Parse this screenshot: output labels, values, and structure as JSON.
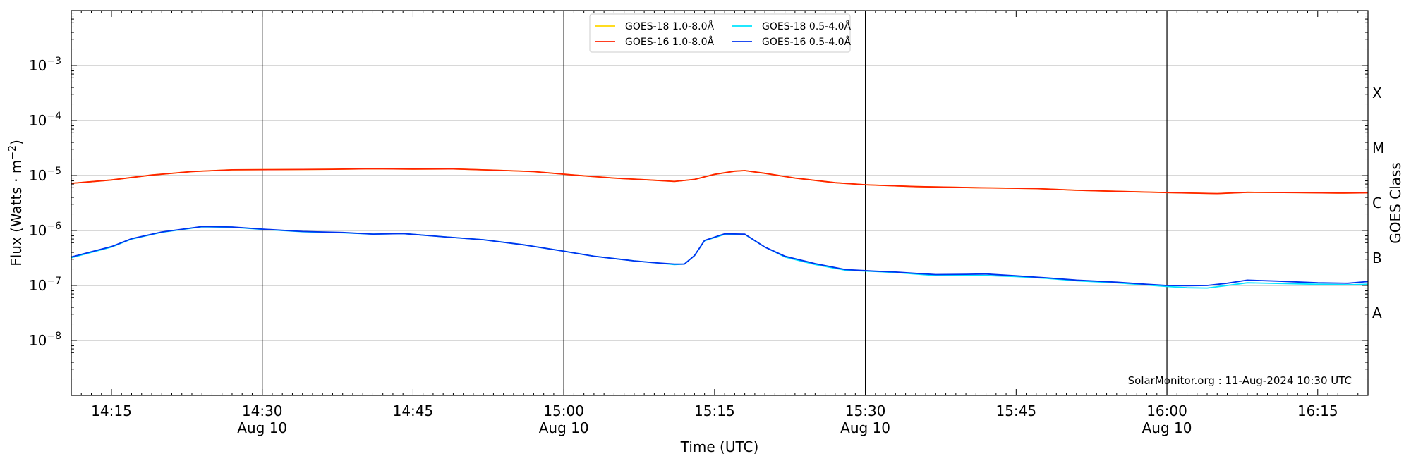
{
  "chart_data": {
    "type": "line",
    "xlabel": "Time (UTC)",
    "ylabel": "Flux (Watts · m",
    "ylabel_exp": "−2",
    "ylabel_close": ")",
    "y2label": "GOES Class",
    "yscale": "log",
    "ylim": [
      1e-09,
      0.01
    ],
    "xlim_minutes": [
      0,
      129
    ],
    "x_tick_minutes": [
      4,
      19,
      34,
      49,
      64,
      79,
      94,
      109,
      124
    ],
    "x_ticks": [
      "14:15",
      "14:30",
      "14:45",
      "15:00",
      "15:15",
      "15:30",
      "15:45",
      "16:00",
      "16:15"
    ],
    "x_tick_sublabels": [
      "",
      "Aug 10",
      "",
      "Aug 10",
      "",
      "Aug 10",
      "",
      "Aug 10",
      ""
    ],
    "y_tick_exponents": [
      -8,
      -7,
      -6,
      -5,
      -4,
      -3
    ],
    "y_ticks": [
      "10",
      "10",
      "10",
      "10",
      "10",
      "10"
    ],
    "y_tick_sup": [
      "−8",
      "−7",
      "−6",
      "−5",
      "−4",
      "−3"
    ],
    "goes_classes": [
      {
        "label": "A",
        "lower": 1e-08
      },
      {
        "label": "B",
        "lower": 1e-07
      },
      {
        "label": "C",
        "lower": 1e-06
      },
      {
        "label": "M",
        "lower": 1e-05
      },
      {
        "label": "X",
        "lower": 0.0001
      }
    ],
    "vertical_lines_minutes": [
      19,
      49,
      79,
      109
    ],
    "horizontal_grid_exponents": [
      -8,
      -7,
      -6,
      -5,
      -4,
      -3
    ],
    "grid": true,
    "legend_position": "top-center",
    "annotation": "SolarMonitor.org : 11-Aug-2024 10:30 UTC",
    "series": [
      {
        "name": "GOES-18 1.0-8.0Å",
        "color": "#ffd700",
        "points": [
          [
            0,
            7.2e-06
          ],
          [
            4,
            8.3e-06
          ],
          [
            8,
            1.02e-05
          ],
          [
            12,
            1.18e-05
          ],
          [
            16,
            1.27e-05
          ],
          [
            20,
            1.28e-05
          ],
          [
            26,
            1.3e-05
          ],
          [
            30,
            1.33e-05
          ],
          [
            34,
            1.31e-05
          ],
          [
            38,
            1.32e-05
          ],
          [
            42,
            1.25e-05
          ],
          [
            46,
            1.18e-05
          ],
          [
            50,
            1.02e-05
          ],
          [
            54,
            9e-06
          ],
          [
            58,
            8.2e-06
          ],
          [
            60,
            7.8e-06
          ],
          [
            62,
            8.5e-06
          ],
          [
            64,
            1.05e-05
          ],
          [
            66,
            1.2e-05
          ],
          [
            67,
            1.23e-05
          ],
          [
            69,
            1.1e-05
          ],
          [
            72,
            9e-06
          ],
          [
            76,
            7.4e-06
          ],
          [
            79,
            6.8e-06
          ],
          [
            84,
            6.3e-06
          ],
          [
            90,
            6e-06
          ],
          [
            93,
            5.9e-06
          ],
          [
            96,
            5.8e-06
          ],
          [
            100,
            5.4e-06
          ],
          [
            105,
            5.1e-06
          ],
          [
            110,
            4.85e-06
          ],
          [
            114,
            4.7e-06
          ],
          [
            117,
            4.95e-06
          ],
          [
            122,
            4.9e-06
          ],
          [
            126,
            4.8e-06
          ],
          [
            129,
            4.85e-06
          ]
        ]
      },
      {
        "name": "GOES-16 1.0-8.0Å",
        "color": "#ff2200",
        "points": [
          [
            0,
            7.2e-06
          ],
          [
            4,
            8.3e-06
          ],
          [
            8,
            1.02e-05
          ],
          [
            12,
            1.18e-05
          ],
          [
            16,
            1.27e-05
          ],
          [
            20,
            1.28e-05
          ],
          [
            26,
            1.3e-05
          ],
          [
            30,
            1.33e-05
          ],
          [
            34,
            1.31e-05
          ],
          [
            38,
            1.32e-05
          ],
          [
            42,
            1.25e-05
          ],
          [
            46,
            1.18e-05
          ],
          [
            50,
            1.02e-05
          ],
          [
            54,
            9e-06
          ],
          [
            58,
            8.2e-06
          ],
          [
            60,
            7.8e-06
          ],
          [
            62,
            8.5e-06
          ],
          [
            64,
            1.05e-05
          ],
          [
            66,
            1.2e-05
          ],
          [
            67,
            1.23e-05
          ],
          [
            69,
            1.1e-05
          ],
          [
            72,
            9e-06
          ],
          [
            76,
            7.4e-06
          ],
          [
            79,
            6.8e-06
          ],
          [
            84,
            6.3e-06
          ],
          [
            90,
            6e-06
          ],
          [
            93,
            5.9e-06
          ],
          [
            96,
            5.8e-06
          ],
          [
            100,
            5.4e-06
          ],
          [
            105,
            5.1e-06
          ],
          [
            110,
            4.85e-06
          ],
          [
            114,
            4.7e-06
          ],
          [
            117,
            4.95e-06
          ],
          [
            122,
            4.9e-06
          ],
          [
            126,
            4.8e-06
          ],
          [
            129,
            4.85e-06
          ]
        ]
      },
      {
        "name": "GOES-18 0.5-4.0Å",
        "color": "#00e5ff",
        "points": [
          [
            0,
            3.2e-07
          ],
          [
            4,
            5e-07
          ],
          [
            6,
            7e-07
          ],
          [
            9,
            9.3e-07
          ],
          [
            13,
            1.17e-06
          ],
          [
            16,
            1.15e-06
          ],
          [
            19,
            1.05e-06
          ],
          [
            23,
            9.5e-07
          ],
          [
            27,
            9.1e-07
          ],
          [
            30,
            8.6e-07
          ],
          [
            33,
            8.8e-07
          ],
          [
            37,
            7.7e-07
          ],
          [
            41,
            6.8e-07
          ],
          [
            45,
            5.5e-07
          ],
          [
            49,
            4.2e-07
          ],
          [
            52,
            3.4e-07
          ],
          [
            56,
            2.8e-07
          ],
          [
            58,
            2.6e-07
          ],
          [
            60,
            2.4e-07
          ],
          [
            61,
            2.45e-07
          ],
          [
            62,
            3.5e-07
          ],
          [
            63,
            6.5e-07
          ],
          [
            65,
            8.5e-07
          ],
          [
            67,
            8.5e-07
          ],
          [
            69,
            5e-07
          ],
          [
            71,
            3.3e-07
          ],
          [
            74,
            2.4e-07
          ],
          [
            77,
            1.9e-07
          ],
          [
            80,
            1.8e-07
          ],
          [
            82,
            1.72e-07
          ],
          [
            84,
            1.62e-07
          ],
          [
            86,
            1.52e-07
          ],
          [
            89,
            1.52e-07
          ],
          [
            91,
            1.52e-07
          ],
          [
            94,
            1.45e-07
          ],
          [
            97,
            1.35e-07
          ],
          [
            100,
            1.22e-07
          ],
          [
            104,
            1.12e-07
          ],
          [
            107,
            1.02e-07
          ],
          [
            109,
            9.6e-08
          ],
          [
            111,
            9.1e-08
          ],
          [
            113,
            9e-08
          ],
          [
            115,
            1e-07
          ],
          [
            117,
            1.12e-07
          ],
          [
            120,
            1.09e-07
          ],
          [
            124,
            1.05e-07
          ],
          [
            127,
            1.03e-07
          ],
          [
            129,
            1.05e-07
          ]
        ]
      },
      {
        "name": "GOES-16 0.5-4.0Å",
        "color": "#0033ee",
        "points": [
          [
            0,
            3.3e-07
          ],
          [
            4,
            5.1e-07
          ],
          [
            6,
            7.1e-07
          ],
          [
            9,
            9.4e-07
          ],
          [
            13,
            1.18e-06
          ],
          [
            16,
            1.16e-06
          ],
          [
            19,
            1.06e-06
          ],
          [
            23,
            9.6e-07
          ],
          [
            27,
            9.2e-07
          ],
          [
            30,
            8.6e-07
          ],
          [
            33,
            8.8e-07
          ],
          [
            37,
            7.7e-07
          ],
          [
            41,
            6.8e-07
          ],
          [
            45,
            5.5e-07
          ],
          [
            49,
            4.2e-07
          ],
          [
            52,
            3.4e-07
          ],
          [
            56,
            2.8e-07
          ],
          [
            58,
            2.6e-07
          ],
          [
            60,
            2.45e-07
          ],
          [
            61,
            2.45e-07
          ],
          [
            62,
            3.5e-07
          ],
          [
            63,
            6.6e-07
          ],
          [
            65,
            8.7e-07
          ],
          [
            67,
            8.6e-07
          ],
          [
            69,
            5e-07
          ],
          [
            71,
            3.4e-07
          ],
          [
            74,
            2.5e-07
          ],
          [
            77,
            1.95e-07
          ],
          [
            80,
            1.82e-07
          ],
          [
            82,
            1.76e-07
          ],
          [
            84,
            1.66e-07
          ],
          [
            86,
            1.58e-07
          ],
          [
            89,
            1.6e-07
          ],
          [
            91,
            1.62e-07
          ],
          [
            94,
            1.5e-07
          ],
          [
            97,
            1.38e-07
          ],
          [
            100,
            1.25e-07
          ],
          [
            104,
            1.15e-07
          ],
          [
            107,
            1.05e-07
          ],
          [
            109,
            1e-07
          ],
          [
            111,
            9.9e-08
          ],
          [
            113,
            1e-07
          ],
          [
            115,
            1.1e-07
          ],
          [
            117,
            1.25e-07
          ],
          [
            120,
            1.2e-07
          ],
          [
            124,
            1.12e-07
          ],
          [
            127,
            1.1e-07
          ],
          [
            129,
            1.18e-07
          ]
        ]
      }
    ]
  }
}
